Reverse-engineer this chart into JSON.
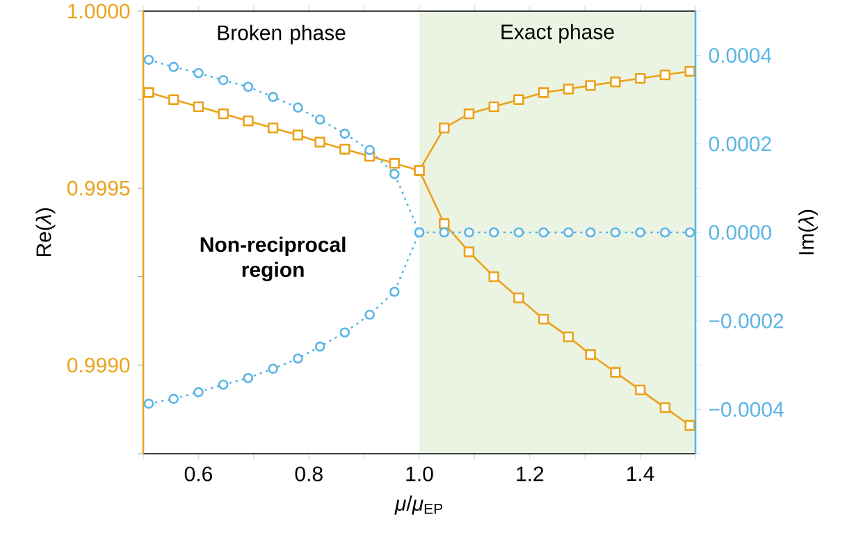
{
  "chart_data": {
    "type": "line",
    "xlabel": "*μ*/*μ*$_{EP}$",
    "ylabel": "Re(*λ*)",
    "y2label": "Im(*λ*)",
    "xlim": [
      0.5,
      1.5
    ],
    "xticks": [
      {
        "value": 0.5,
        "label": null
      },
      {
        "value": 0.6,
        "label": "0.6"
      },
      {
        "value": 0.7,
        "label": null
      },
      {
        "value": 0.8,
        "label": "0.8"
      },
      {
        "value": 0.9,
        "label": null
      },
      {
        "value": 1.0,
        "label": "1.0"
      },
      {
        "value": 1.1,
        "label": null
      },
      {
        "value": 1.2,
        "label": "1.2"
      },
      {
        "value": 1.3,
        "label": null
      },
      {
        "value": 1.4,
        "label": "1.4"
      },
      {
        "value": 1.5,
        "label": null
      }
    ],
    "ylim": [
      0.99875,
      1.0
    ],
    "yticks": [
      {
        "value": 0.99875,
        "label": null
      },
      {
        "value": 0.999,
        "label": "0.9990"
      },
      {
        "value": 0.99925,
        "label": null
      },
      {
        "value": 0.9995,
        "label": "0.9995"
      },
      {
        "value": 0.99975,
        "label": null
      },
      {
        "value": 1.0,
        "label": "1.0000"
      }
    ],
    "y2lim": [
      -0.0005,
      0.0005
    ],
    "y2ticks": [
      {
        "value": -0.0005,
        "label": null
      },
      {
        "value": -0.0004,
        "label": "−0.0004"
      },
      {
        "value": -0.0003,
        "label": null
      },
      {
        "value": -0.0002,
        "label": "−0.0002"
      },
      {
        "value": -0.0001,
        "label": null
      },
      {
        "value": 0,
        "label": "0.0000"
      },
      {
        "value": 0.0001,
        "label": null
      },
      {
        "value": 0.0002,
        "label": "0.0002"
      },
      {
        "value": 0.0003,
        "label": null
      },
      {
        "value": 0.0004,
        "label": "0.0004"
      },
      {
        "value": 0.0005,
        "label": null
      }
    ],
    "series": [
      {
        "color": "#eba21a",
        "marker": "square",
        "line_style": "solid",
        "x": [
          0.51,
          0.555,
          0.6,
          0.645,
          0.69,
          0.735,
          0.78,
          0.82,
          0.865,
          0.91,
          0.955,
          1.0,
          1.045,
          1.09,
          1.135,
          1.18,
          1.225,
          1.27,
          1.31,
          1.355,
          1.4,
          1.445,
          1.49
        ],
        "values": [
          0.99977,
          0.99975,
          0.99973,
          0.99971,
          0.99969,
          0.99967,
          0.99965,
          0.99963,
          0.99961,
          0.99959,
          0.99957,
          0.99955,
          0.99967,
          0.99971,
          0.99973,
          0.99975,
          0.99977,
          0.99978,
          0.99979,
          0.9998,
          0.99981,
          0.99982,
          0.99983
        ]
      },
      {
        "color": "#eba21a",
        "marker": "square",
        "line_style": "solid",
        "x": [
          1.0,
          1.045,
          1.09,
          1.135,
          1.18,
          1.225,
          1.27,
          1.31,
          1.355,
          1.4,
          1.445,
          1.49
        ],
        "values": [
          0.99955,
          0.9994,
          0.99932,
          0.99925,
          0.99919,
          0.99913,
          0.99908,
          0.99903,
          0.99898,
          0.99893,
          0.99888,
          0.99883
        ]
      },
      {
        "color": "#5ab4e5",
        "marker": "circle",
        "line_style": "dotted",
        "axis": "y2",
        "x": [
          0.51,
          0.555,
          0.6,
          0.645,
          0.69,
          0.735,
          0.78,
          0.82,
          0.865,
          0.91,
          0.955,
          1.0,
          1.045,
          1.09,
          1.135,
          1.18,
          1.225,
          1.27,
          1.31,
          1.355,
          1.4,
          1.445,
          1.49
        ],
        "values": [
          0.00039,
          0.000374,
          0.00036,
          0.000344,
          0.000329,
          0.000306,
          0.000282,
          0.000255,
          0.000223,
          0.000186,
          0.000132,
          0,
          0,
          0,
          0,
          0,
          0,
          0,
          0,
          0,
          0,
          0,
          0
        ]
      },
      {
        "color": "#5ab4e5",
        "marker": "circle",
        "line_style": "dotted",
        "axis": "y2",
        "x": [
          0.51,
          0.555,
          0.6,
          0.645,
          0.69,
          0.735,
          0.78,
          0.82,
          0.865,
          0.91,
          0.955,
          1.0
        ],
        "values": [
          -0.000387,
          -0.000376,
          -0.000361,
          -0.000344,
          -0.000329,
          -0.000308,
          -0.000285,
          -0.000258,
          -0.000226,
          -0.000186,
          -0.000134,
          0
        ]
      }
    ],
    "bands": [
      {
        "axis": "x",
        "from": 1.0,
        "to": 1.5,
        "label": "Exact phase",
        "color": "#ebf3e3"
      }
    ],
    "annotations": [
      "Broken phase",
      "**Non-reciprocal region**"
    ],
    "grid": false
  }
}
